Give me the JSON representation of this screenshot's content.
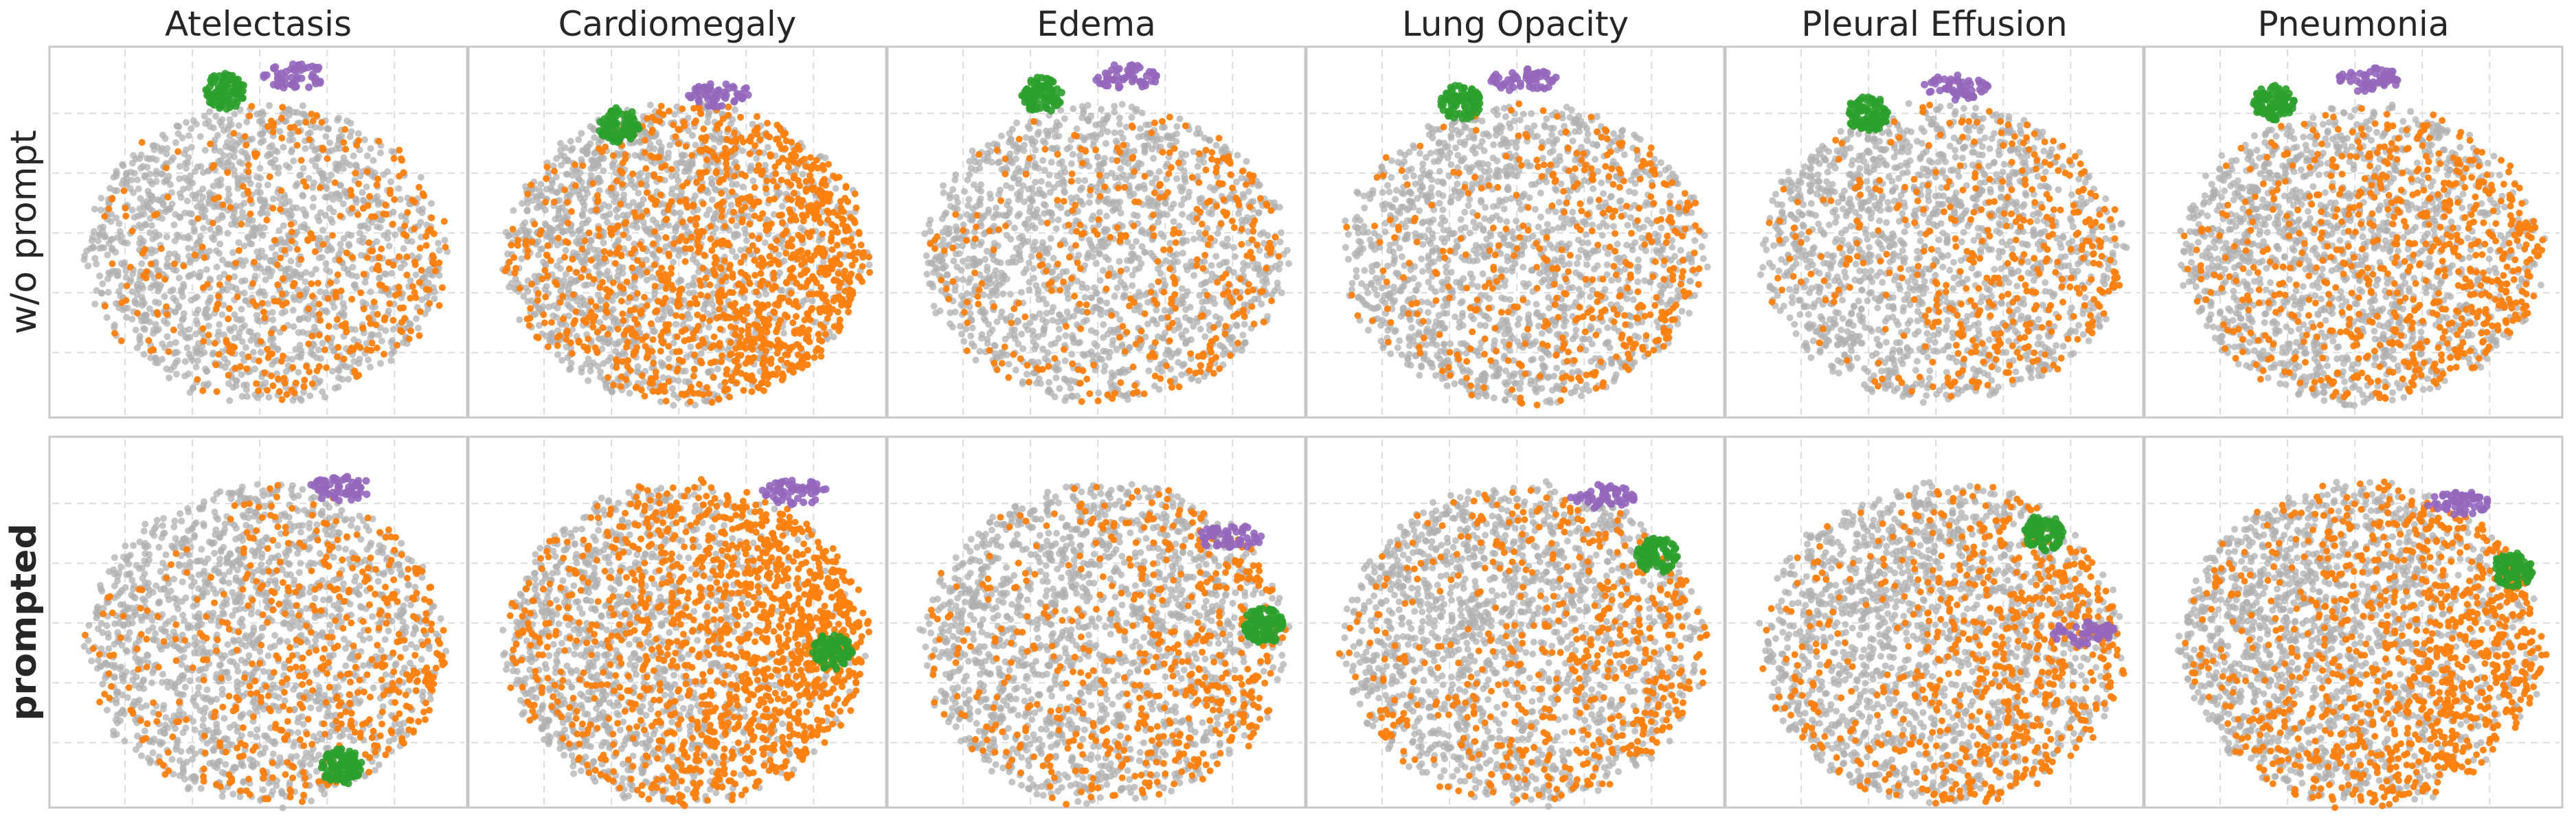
{
  "chart_data": {
    "type": "scatter",
    "columns": [
      "Atelectasis",
      "Cardiomegaly",
      "Edema",
      "Lung Opacity",
      "Pleural Effusion",
      "Pneumonia"
    ],
    "rows": [
      "w/o prompt",
      "prompted"
    ],
    "grid": true,
    "legend": "none",
    "colors": {
      "background_points": "#b0b0b0",
      "positive_points": "#ff7f0e",
      "cluster_a": "#2ca02c",
      "cluster_b": "#9467bd"
    },
    "series_density": {
      "w/o prompt": [
        0.3,
        0.65,
        0.28,
        0.3,
        0.32,
        0.45
      ],
      "prompted": [
        0.38,
        0.62,
        0.4,
        0.4,
        0.45,
        0.6
      ]
    }
  }
}
